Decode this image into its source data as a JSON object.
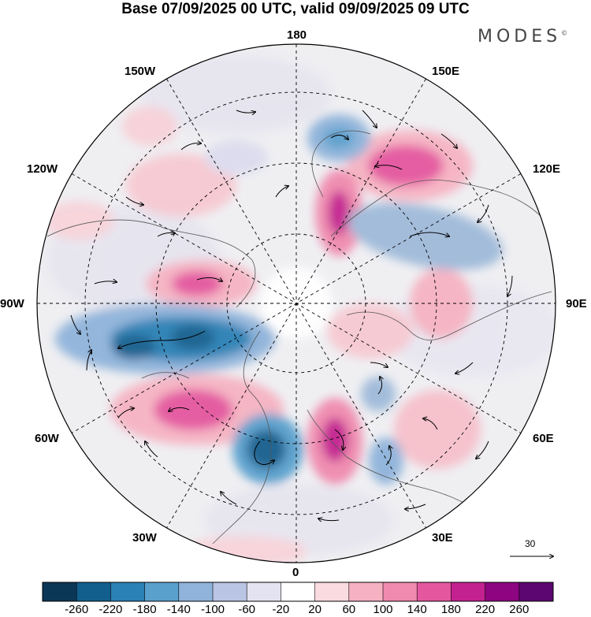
{
  "title": "Base 07/09/2025 00 UTC, valid 09/09/2025 09 UTC",
  "brand": "MODES",
  "brand_mark": "©",
  "map": {
    "projection": "north polar stereographic",
    "longitude_labels": {
      "lon_180": "180",
      "lon_150E": "150E",
      "lon_120E": "120E",
      "lon_90E": "90E",
      "lon_60E": "60E",
      "lon_30E": "30E",
      "lon_0": "0",
      "lon_30W": "30W",
      "lon_60W": "60W",
      "lon_90W": "90W",
      "lon_120W": "120W",
      "lon_150W": "150W"
    },
    "reference_vector": "30"
  },
  "colorbar": {
    "labels": [
      "-260",
      "-220",
      "-180",
      "-140",
      "-100",
      "-60",
      "-20",
      "20",
      "60",
      "100",
      "140",
      "180",
      "220",
      "260"
    ],
    "colors": [
      "#0b3756",
      "#125f8e",
      "#2a81b5",
      "#5aa0cd",
      "#8fb3da",
      "#bac5e4",
      "#e4e3f1",
      "#ffffff",
      "#fadbe0",
      "#f6b2c2",
      "#f08aae",
      "#e4579f",
      "#c42190",
      "#8d0581",
      "#5c0670"
    ]
  }
}
